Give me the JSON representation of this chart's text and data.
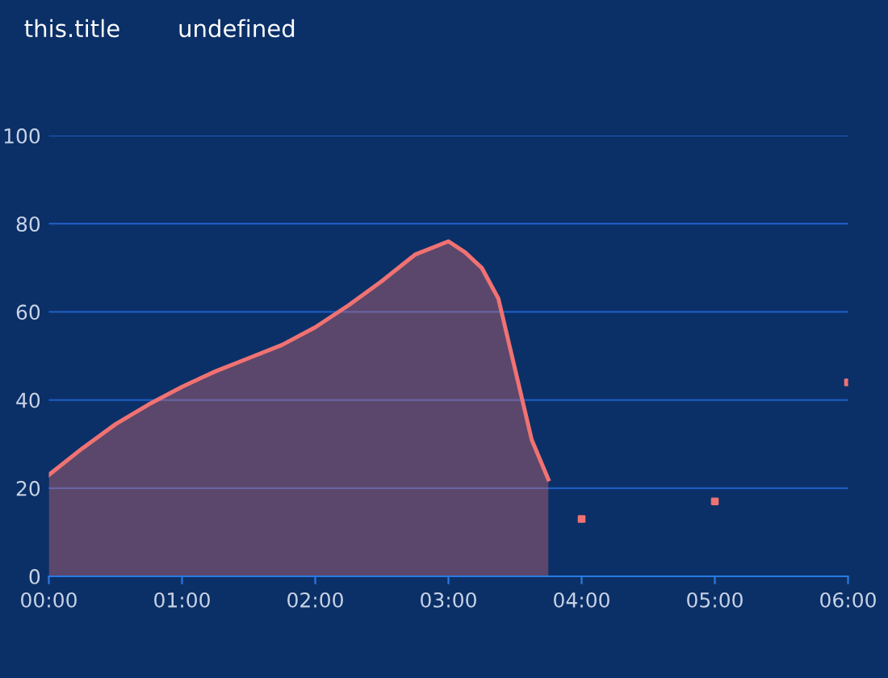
{
  "chart_data": {
    "type": "area",
    "title": "this.title",
    "subtitle": "undefined",
    "series": [
      {
        "color": "#f07272",
        "x": [
          0,
          0.25,
          0.5,
          0.75,
          1,
          1.25,
          1.5,
          1.75,
          2,
          2.25,
          2.5,
          2.75,
          3,
          3.125,
          3.25,
          3.375,
          3.5,
          3.625,
          3.75
        ],
        "values": [
          23,
          29,
          34.5,
          39,
          43,
          46.5,
          49.5,
          52.5,
          56.5,
          61.5,
          67,
          73,
          76,
          73.5,
          70,
          63,
          47,
          31,
          22
        ]
      },
      {
        "type": "scatter",
        "color": "#f07272",
        "x": [
          4,
          5,
          6
        ],
        "values": [
          13,
          17,
          44
        ]
      }
    ],
    "xlim": [
      0,
      6
    ],
    "xticks": [
      {
        "value": 0,
        "label": "00:00"
      },
      {
        "value": 1,
        "label": "01:00"
      },
      {
        "value": 2,
        "label": "02:00"
      },
      {
        "value": 3,
        "label": "03:00"
      },
      {
        "value": 4,
        "label": "04:00"
      },
      {
        "value": 5,
        "label": "05:00"
      },
      {
        "value": 6,
        "label": "06:00"
      }
    ],
    "ylim": [
      0,
      100
    ],
    "yticks": [
      0,
      20,
      40,
      60,
      80,
      100
    ],
    "grid": "y",
    "line_style": "solid"
  }
}
